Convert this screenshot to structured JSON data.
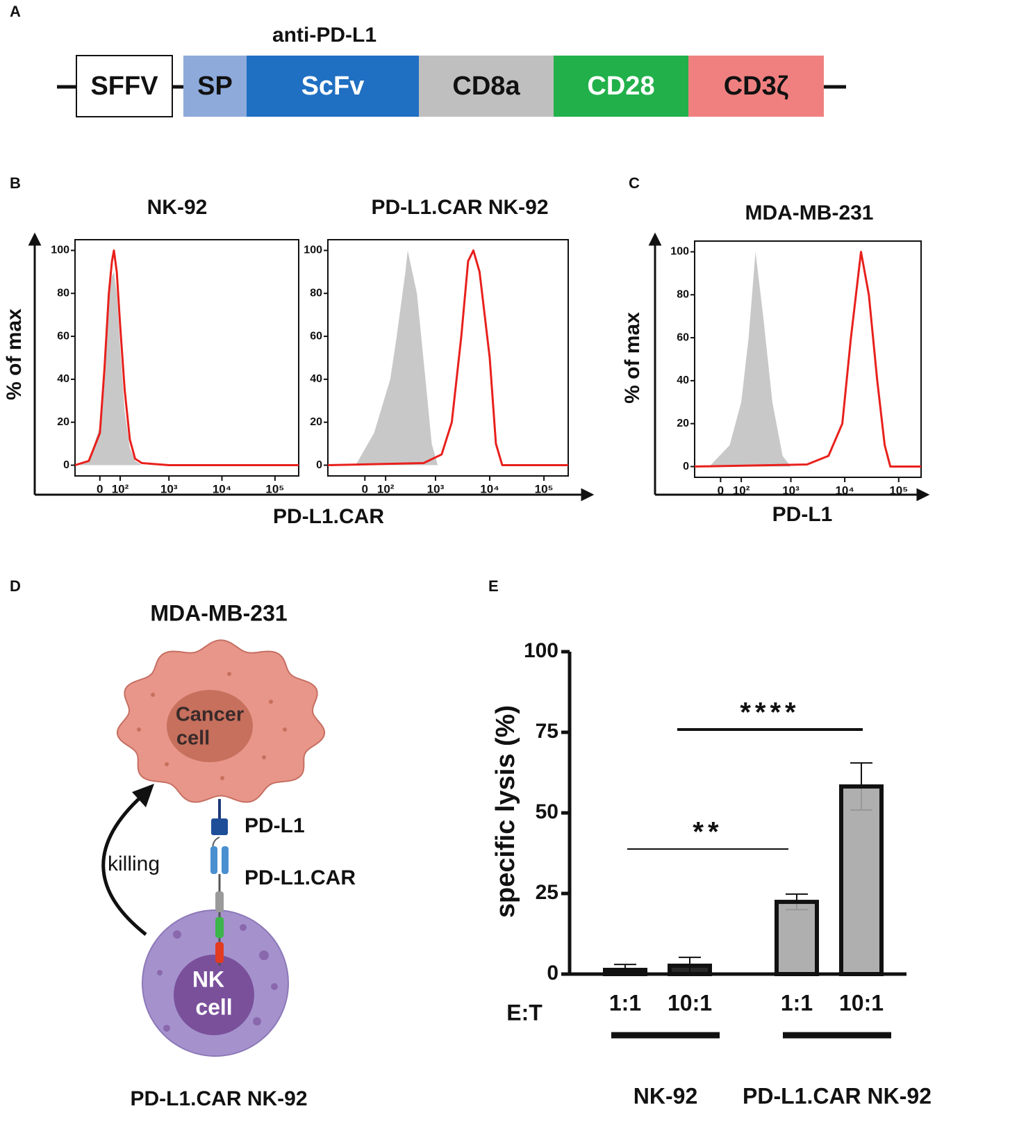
{
  "panel_labels": [
    "A",
    "B",
    "C",
    "D",
    "E"
  ],
  "construct": {
    "title": "anti-PD-L1",
    "segments": [
      {
        "label": "SFFV",
        "color": "#ffffff"
      },
      {
        "label": "SP",
        "color": "#8eaadb"
      },
      {
        "label": "ScFv",
        "color": "#1f6fc2"
      },
      {
        "label": "CD8a",
        "color": "#bfbfbf"
      },
      {
        "label": "CD28",
        "color": "#22b04b"
      },
      {
        "label": "CD3ζ",
        "color": "#f08080"
      }
    ]
  },
  "chart_data": [
    {
      "type": "histogram-overlay",
      "title": "NK-92",
      "ylabel": "% of max",
      "xlabel": "PD-L1.CAR",
      "xscale": "asinh",
      "xlim": [
        -130,
        280000
      ],
      "ylim": [
        -5,
        105
      ],
      "xticks": [
        {
          "value": 0,
          "label": "0"
        },
        {
          "value": 100,
          "label": "10²"
        },
        {
          "value": 1000,
          "label": "10³"
        },
        {
          "value": 10000,
          "label": "10⁴"
        },
        {
          "value": 100000,
          "label": "10⁵"
        }
      ],
      "yticks": [
        0,
        20,
        40,
        60,
        80,
        100
      ],
      "series": [
        {
          "color": "#c8c8c8",
          "x": [
            -130,
            -50,
            0,
            20,
            40,
            55,
            65,
            80,
            100,
            130,
            170,
            220,
            300,
            280000
          ],
          "values": [
            0,
            2,
            18,
            50,
            80,
            88,
            90,
            80,
            55,
            25,
            8,
            2,
            0,
            0
          ]
        },
        {
          "color": "#e8201c",
          "x": [
            -130,
            -50,
            0,
            20,
            40,
            55,
            65,
            80,
            100,
            130,
            170,
            220,
            300,
            1000,
            280000
          ],
          "values": [
            0,
            2,
            15,
            45,
            80,
            95,
            100,
            90,
            65,
            35,
            12,
            3,
            1,
            0,
            0
          ]
        }
      ]
    },
    {
      "type": "histogram-overlay",
      "title": "PD-L1.CAR NK-92",
      "xscale": "asinh",
      "xlim": [
        -230,
        280000
      ],
      "ylim": [
        -5,
        105
      ],
      "xticks": [
        {
          "value": 0,
          "label": "0"
        },
        {
          "value": 100,
          "label": "10²"
        },
        {
          "value": 1000,
          "label": "10³"
        },
        {
          "value": 10000,
          "label": "10⁴"
        },
        {
          "value": 100000,
          "label": "10⁵"
        }
      ],
      "yticks": [
        0,
        20,
        40,
        60,
        80,
        100
      ],
      "series": [
        {
          "color": "#c8c8c8",
          "x": [
            -40,
            40,
            130,
            180,
            270,
            300,
            450,
            650,
            850,
            1100
          ],
          "values": [
            0,
            15,
            40,
            60,
            90,
            100,
            80,
            40,
            10,
            0
          ]
        },
        {
          "color": "#e8201c",
          "x": [
            -230,
            600,
            1300,
            2000,
            3000,
            4000,
            5000,
            6500,
            10000,
            13000,
            17000,
            280000
          ],
          "values": [
            0,
            1,
            5,
            20,
            60,
            95,
            100,
            90,
            50,
            10,
            0,
            0
          ]
        }
      ]
    },
    {
      "type": "histogram-overlay",
      "title": "MDA-MB-231",
      "ylabel": "% of max",
      "xlabel": "PD-L1",
      "xscale": "asinh",
      "xlim": [
        -135,
        260000
      ],
      "ylim": [
        -5,
        105
      ],
      "xticks": [
        {
          "value": 0,
          "label": "0"
        },
        {
          "value": 100,
          "label": "10²"
        },
        {
          "value": 1000,
          "label": "10³"
        },
        {
          "value": 10000,
          "label": "10⁴"
        },
        {
          "value": 100000,
          "label": "10⁵"
        }
      ],
      "yticks": [
        0,
        20,
        40,
        60,
        80,
        100
      ],
      "series": [
        {
          "color": "#c8c8c8",
          "x": [
            -50,
            40,
            100,
            150,
            210,
            300,
            450,
            700,
            1000
          ],
          "values": [
            0,
            10,
            30,
            60,
            100,
            70,
            30,
            5,
            0
          ]
        },
        {
          "color": "#e8201c",
          "x": [
            -135,
            2000,
            5000,
            9000,
            13000,
            20000,
            28000,
            40000,
            55000,
            70000,
            260000
          ],
          "values": [
            0,
            1,
            5,
            20,
            60,
            100,
            80,
            40,
            10,
            0,
            0
          ]
        }
      ]
    },
    {
      "type": "bar",
      "ylabel": "specific lysis (%)",
      "xlabel": "E:T",
      "categories": [
        "1:1",
        "10:1",
        "1:1",
        "10:1"
      ],
      "values": [
        1.3,
        2.6,
        22.4,
        58.2
      ],
      "errors": [
        1.7,
        2.6,
        2.4,
        7.3
      ],
      "colors": [
        "#111111",
        "#111111",
        "#a6a6a6",
        "#a6a6a6"
      ],
      "ylim": [
        0,
        100
      ],
      "yticks": [
        0,
        25,
        50,
        75,
        100
      ],
      "groups": [
        {
          "name": "NK-92",
          "size": 2
        },
        {
          "name": "PD-L1.CAR NK-92",
          "size": 2
        }
      ],
      "annotations": [
        "**",
        "****"
      ]
    }
  ],
  "diagram": {
    "target": "MDA-MB-231",
    "cancer_cell": [
      "Cancer",
      "cell"
    ],
    "ligand": "PD-L1",
    "receptor": "PD-L1.CAR",
    "action": "killing",
    "nk_cell": [
      "NK",
      "cell"
    ],
    "effector": "PD-L1.CAR NK-92"
  }
}
